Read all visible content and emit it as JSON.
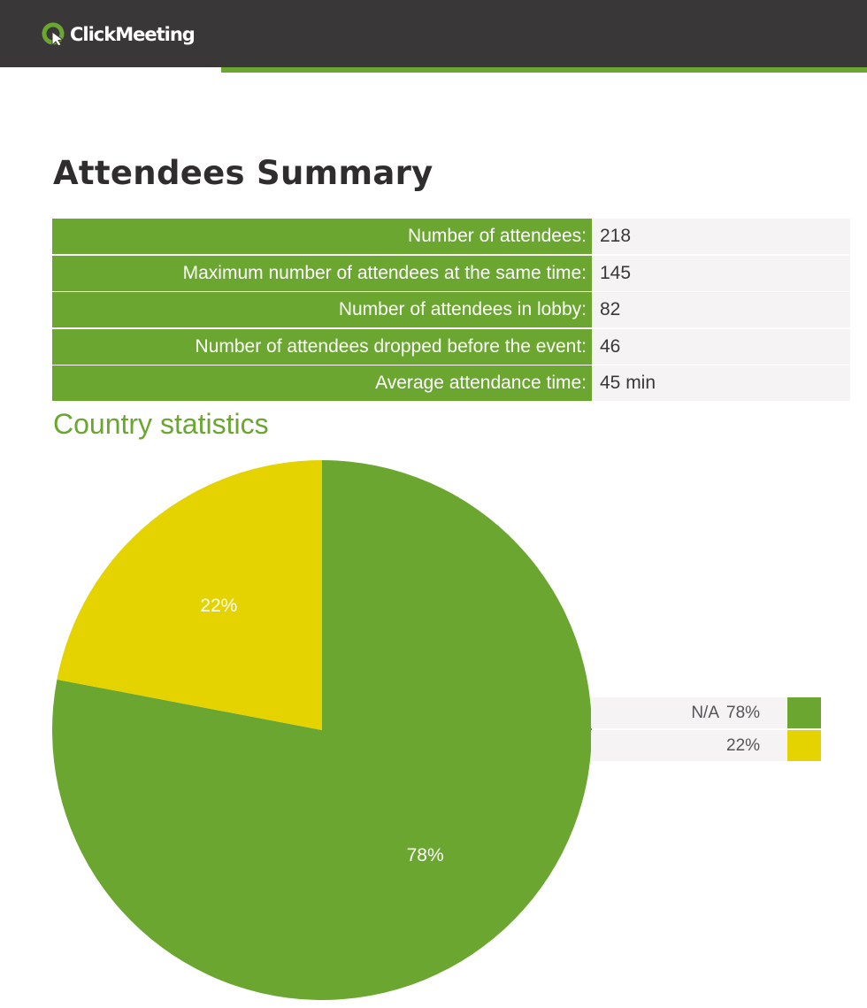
{
  "header": {
    "logo_text": "ClickMeeting",
    "logo_icon": "clickmeeting-logo-icon",
    "bar_color": "#3a3739",
    "accent_color": "#6aa630"
  },
  "summary": {
    "title": "Attendees Summary",
    "rows": [
      {
        "label": "Number of attendees:",
        "value": "218"
      },
      {
        "label": "Maximum number of attendees at the same time:",
        "value": "145"
      },
      {
        "label": "Number of attendees in lobby:",
        "value": "82"
      },
      {
        "label": "Number of attendees dropped before the event:",
        "value": "46"
      },
      {
        "label": "Average attendance time:",
        "value": "45 min"
      }
    ]
  },
  "country": {
    "title": "Country statistics"
  },
  "chart_data": {
    "type": "pie",
    "title": "Country statistics",
    "slices": [
      {
        "name": "N/A",
        "value": 78,
        "label": "78%",
        "legend_pct": "78%",
        "color": "#6aa630"
      },
      {
        "name": "",
        "value": 22,
        "label": "22%",
        "legend_pct": "22%",
        "color": "#e5d300"
      }
    ],
    "legend_placement": "right"
  }
}
